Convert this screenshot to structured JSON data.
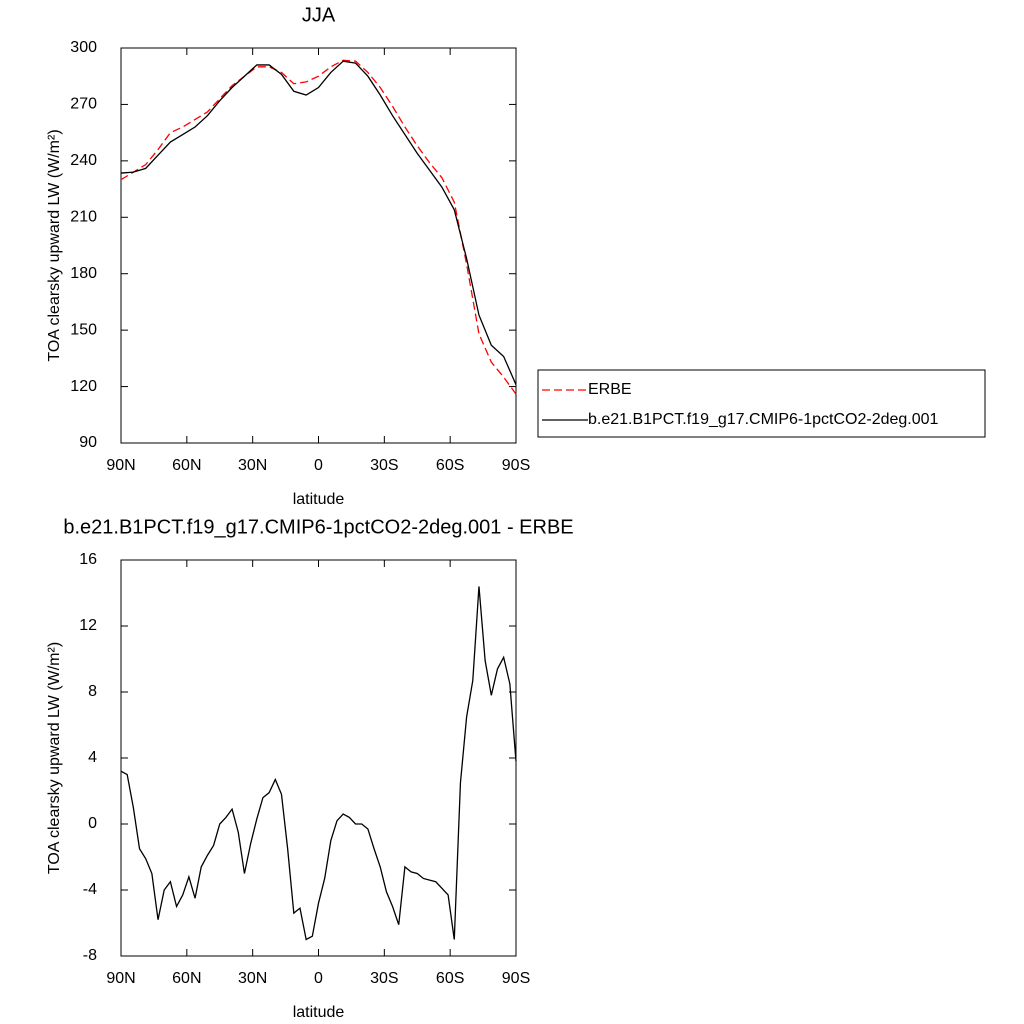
{
  "chart_data": [
    {
      "type": "line",
      "title": "JJA",
      "xlabel": "latitude",
      "ylabel": "TOA clearsky upward LW (W/m²)",
      "x": [
        90,
        84.375,
        78.75,
        73.125,
        67.5,
        61.875,
        56.25,
        50.625,
        45,
        39.375,
        33.75,
        28.125,
        22.5,
        16.875,
        11.25,
        5.625,
        0,
        -5.625,
        -11.25,
        -16.875,
        -22.5,
        -28.125,
        -33.75,
        -39.375,
        -45,
        -50.625,
        -56.25,
        -61.875,
        -67.5,
        -73.125,
        -78.75,
        -84.375,
        -90
      ],
      "series": [
        {
          "name": "ERBE",
          "color": "#ff0000",
          "dash": "dashed",
          "values": [
            230,
            234,
            238,
            246,
            255,
            258,
            262,
            266,
            273,
            280,
            285,
            290,
            290,
            287,
            281,
            282,
            285,
            290,
            293.5,
            293,
            287,
            279,
            269,
            258,
            248,
            239,
            231,
            218,
            185,
            148,
            133,
            125,
            116
          ]
        },
        {
          "name": "b.e21.B1PCT.f19_g17.CMIP6-1pctCO2-2deg.001",
          "color": "#000000",
          "dash": "solid",
          "values": [
            233.5,
            234,
            236,
            243,
            250,
            254,
            258,
            264,
            272,
            279,
            285,
            291,
            291,
            286,
            277,
            275,
            279,
            287,
            293,
            292,
            285,
            275,
            264,
            254,
            244,
            235,
            226,
            214,
            188,
            158,
            142,
            136,
            121
          ]
        }
      ],
      "xlim": [
        90,
        -90
      ],
      "xticks": [
        {
          "value": 90,
          "label": "90N"
        },
        {
          "value": 60,
          "label": "60N"
        },
        {
          "value": 30,
          "label": "30N"
        },
        0,
        {
          "value": -30,
          "label": "30S"
        },
        {
          "value": -60,
          "label": "60S"
        },
        {
          "value": -90,
          "label": "90S"
        }
      ],
      "ylim": [
        90,
        300
      ],
      "yticks": [
        90,
        120,
        150,
        180,
        210,
        240,
        270,
        300
      ],
      "legend": "right"
    },
    {
      "type": "line",
      "title": "b.e21.B1PCT.f19_g17.CMIP6-1pctCO2-2deg.001 - ERBE",
      "xlabel": "latitude",
      "ylabel": "TOA clearsky upward LW (W/m²)",
      "x": [
        90,
        87.1875,
        84.375,
        81.5625,
        78.75,
        75.9375,
        73.125,
        70.3125,
        67.5,
        64.6875,
        61.875,
        59.0625,
        56.25,
        53.4375,
        50.625,
        47.8125,
        45,
        42.1875,
        39.375,
        36.5625,
        33.75,
        30.9375,
        28.125,
        25.3125,
        22.5,
        19.6875,
        16.875,
        14.0625,
        11.25,
        8.4375,
        5.625,
        2.8125,
        0,
        -2.8125,
        -5.625,
        -8.4375,
        -11.25,
        -14.0625,
        -16.875,
        -19.6875,
        -22.5,
        -25.3125,
        -28.125,
        -30.9375,
        -33.75,
        -36.5625,
        -39.375,
        -42.1875,
        -45,
        -47.8125,
        -50.625,
        -53.4375,
        -56.25,
        -59.0625,
        -61.875,
        -64.6875,
        -67.5,
        -70.3125,
        -73.125,
        -75.9375,
        -78.75,
        -81.5625,
        -84.375,
        -87.1875,
        -90
      ],
      "values": [
        3.2,
        3.0,
        1.0,
        -1.5,
        -2.1,
        -3.0,
        -5.8,
        -4.0,
        -3.5,
        -5.0,
        -4.3,
        -3.2,
        -4.5,
        -2.6,
        -1.9,
        -1.3,
        0,
        0.4,
        0.9,
        -0.5,
        -3.0,
        -1.2,
        0.3,
        1.6,
        1.9,
        2.7,
        1.8,
        -1.5,
        -5.4,
        -5.1,
        -7.0,
        -6.8,
        -4.8,
        -3.3,
        -1.0,
        0.2,
        0.6,
        0.4,
        0,
        0,
        -0.3,
        -1.5,
        -2.6,
        -4.1,
        -5.0,
        -6.1,
        -2.6,
        -2.9,
        -3.0,
        -3.3,
        -3.4,
        -3.5,
        -3.9,
        -4.3,
        -7.0,
        2.5,
        6.5,
        8.7,
        14.4,
        9.9,
        7.8,
        9.4,
        10.1,
        8.5,
        3.8
      ],
      "color": "#000000",
      "xlim": [
        90,
        -90
      ],
      "xticks": [
        {
          "value": 90,
          "label": "90N"
        },
        {
          "value": 60,
          "label": "60N"
        },
        {
          "value": 30,
          "label": "30N"
        },
        0,
        {
          "value": -30,
          "label": "30S"
        },
        {
          "value": -60,
          "label": "60S"
        },
        {
          "value": -90,
          "label": "90S"
        }
      ],
      "ylim": [
        -8,
        16
      ],
      "yticks": [
        -8,
        -4,
        0,
        4,
        8,
        12,
        16
      ]
    }
  ]
}
